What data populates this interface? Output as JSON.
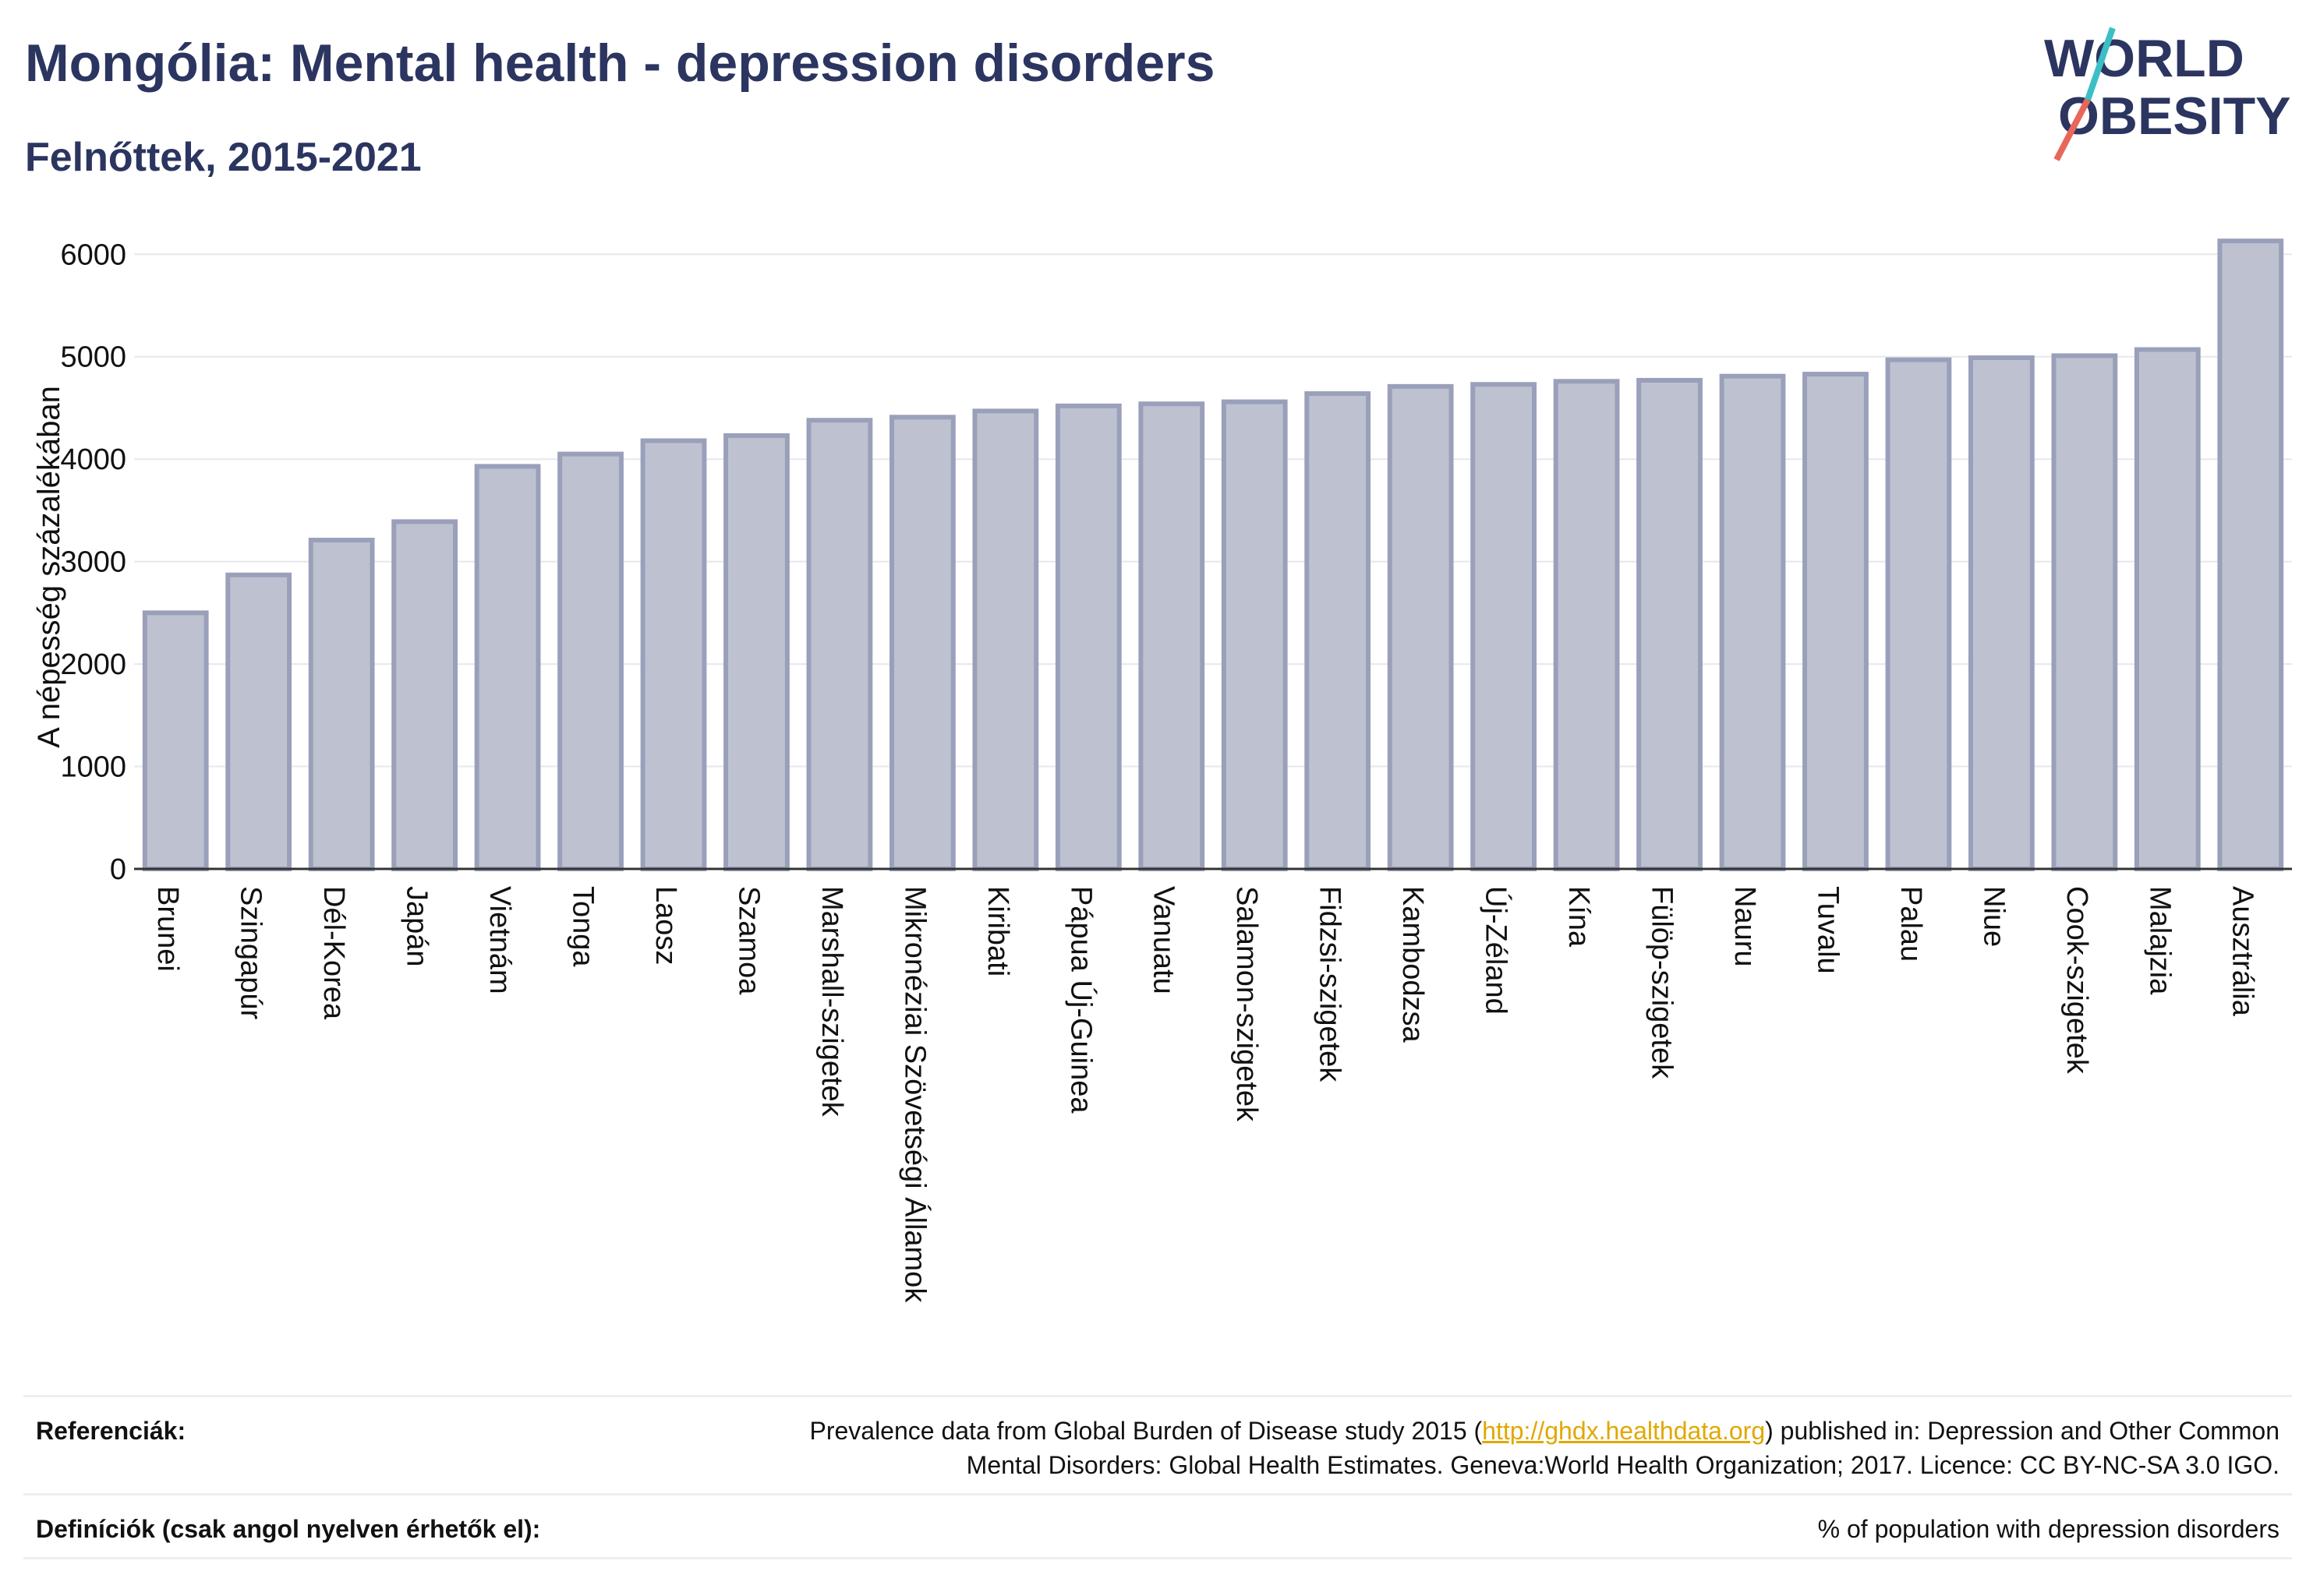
{
  "header": {
    "title": "Mongólia: Mental health - depression disorders",
    "subtitle": "Felnőttek, 2015-2021",
    "logo_text": "WORLD OBESITY"
  },
  "colors": {
    "title": "#2b3560",
    "bar_fill": "#bec2d0",
    "bar_stroke": "#9aa0ba",
    "link": "#e0a800",
    "logo_line_teal": "#3bbfc4",
    "logo_line_red": "#e8675a"
  },
  "chart_data": {
    "type": "bar",
    "title": "",
    "xlabel": "",
    "ylabel": "A népesség százalékában",
    "ylim": [
      0,
      6200
    ],
    "yticks": [
      0,
      1000,
      2000,
      3000,
      4000,
      5000,
      6000
    ],
    "grid": true,
    "categories": [
      "Brunei",
      "Szingapúr",
      "Dél-Korea",
      "Japán",
      "Vietnám",
      "Tonga",
      "Laosz",
      "Szamoa",
      "Marshall-szigetek",
      "Mikronéziai Szövetségi Államok",
      "Kiribati",
      "Pápua Új-Guinea",
      "Vanuatu",
      "Salamon-szigetek",
      "Fidzsi-szigetek",
      "Kambodzsa",
      "Új-Zéland",
      "Kína",
      "Fülöp-szigetek",
      "Nauru",
      "Tuvalu",
      "Palau",
      "Niue",
      "Cook-szigetek",
      "Malajzia",
      "Ausztrália"
    ],
    "values": [
      2500,
      2870,
      3210,
      3390,
      3930,
      4050,
      4180,
      4230,
      4380,
      4410,
      4470,
      4520,
      4540,
      4560,
      4640,
      4710,
      4730,
      4760,
      4770,
      4810,
      4830,
      4970,
      4990,
      5010,
      5070,
      6130
    ]
  },
  "footer": {
    "references_label": "Referenciák:",
    "references_text_before": "Prevalence data from Global Burden of Disease study 2015 (",
    "references_link": "http://ghdx.healthdata.org",
    "references_text_after": ") published in: Depression and Other Common",
    "references_line2": "Mental Disorders: Global Health Estimates. Geneva:World Health Organization; 2017. Licence: CC BY-NC-SA 3.0 IGO.",
    "definitions_label": "Definíciók (csak angol nyelven érhetők el):",
    "definitions_text": "% of population with depression disorders"
  }
}
